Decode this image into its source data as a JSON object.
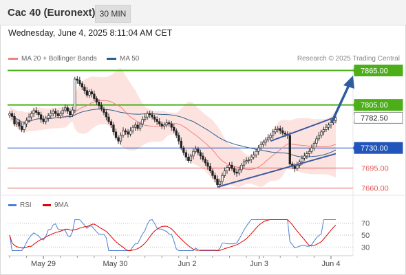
{
  "header": {
    "title": "Cac 40 (Euronext)",
    "interval": "30 MIN"
  },
  "datetime": "Wednesday, June 4, 2025 8:11:04 AM CET",
  "legend": [
    {
      "label": "MA 20 + Bollinger Bands",
      "color": "#f08080"
    },
    {
      "label": "MA 50",
      "color": "#2e5c8a"
    }
  ],
  "copyright": "Research © 2025 Trading Central",
  "rsi_legend": [
    {
      "label": "RSI",
      "color": "#4a7fd4"
    },
    {
      "label": "9MA",
      "color": "#e00000"
    }
  ],
  "chart_data": [
    {
      "type": "candlestick",
      "x_tick_labels": [
        "May 29",
        "May 30",
        "Jun 2",
        "Jun 3",
        "Jun 4"
      ],
      "ylim": [
        7650,
        7880
      ],
      "levels": [
        {
          "label": "7865.00",
          "value": 7865,
          "color": "#4caf1a",
          "kind": "resistance"
        },
        {
          "label": "7805.00",
          "value": 7805,
          "color": "#4caf1a",
          "kind": "resistance"
        },
        {
          "label": "7782.50",
          "value": 7782.5,
          "color": "#333333",
          "kind": "last"
        },
        {
          "label": "7730.00",
          "value": 7730,
          "color": "#2255bb",
          "kind": "pivot"
        },
        {
          "label": "7695.00",
          "value": 7695,
          "color": "#e05a5a",
          "kind": "support"
        },
        {
          "label": "7660.00",
          "value": 7660,
          "color": "#e05a5a",
          "kind": "support"
        }
      ],
      "close": [
        7790,
        7785,
        7772,
        7775,
        7768,
        7762,
        7772,
        7778,
        7784,
        7790,
        7795,
        7792,
        7788,
        7780,
        7776,
        7782,
        7786,
        7790,
        7794,
        7790,
        7786,
        7790,
        7796,
        7800,
        7794,
        7788,
        7796,
        7850,
        7848,
        7842,
        7836,
        7830,
        7822,
        7828,
        7824,
        7816,
        7810,
        7804,
        7798,
        7792,
        7784,
        7776,
        7770,
        7758,
        7748,
        7742,
        7752,
        7760,
        7758,
        7754,
        7760,
        7766,
        7770,
        7764,
        7772,
        7780,
        7784,
        7790,
        7788,
        7784,
        7780,
        7776,
        7772,
        7768,
        7770,
        7774,
        7772,
        7766,
        7760,
        7752,
        7742,
        7730,
        7722,
        7714,
        7708,
        7716,
        7724,
        7728,
        7722,
        7716,
        7710,
        7704,
        7698,
        7690,
        7682,
        7676,
        7666,
        7672,
        7682,
        7690,
        7696,
        7700,
        7694,
        7688,
        7686,
        7692,
        7700,
        7706,
        7708,
        7710,
        7714,
        7718,
        7724,
        7730,
        7736,
        7740,
        7744,
        7748,
        7752,
        7758,
        7762,
        7764,
        7760,
        7756,
        7754,
        7752,
        7702,
        7698,
        7694,
        7700,
        7706,
        7712,
        7716,
        7720,
        7724,
        7730,
        7738,
        7746,
        7752,
        7758,
        7762,
        7766,
        7770,
        7774,
        7778,
        7782.5
      ],
      "series": [
        {
          "name": "MA 20",
          "color": "#f08080"
        },
        {
          "name": "MA 50",
          "color": "#2e5c8a"
        }
      ]
    },
    {
      "type": "line",
      "title": "RSI",
      "ylim": [
        20,
        80
      ],
      "y_tick_labels": [
        "70",
        "50",
        "30"
      ],
      "y_ticks": [
        70,
        50,
        30
      ],
      "series": [
        {
          "name": "RSI",
          "color": "#4a7fd4"
        },
        {
          "name": "9MA",
          "color": "#e00000"
        }
      ]
    }
  ]
}
